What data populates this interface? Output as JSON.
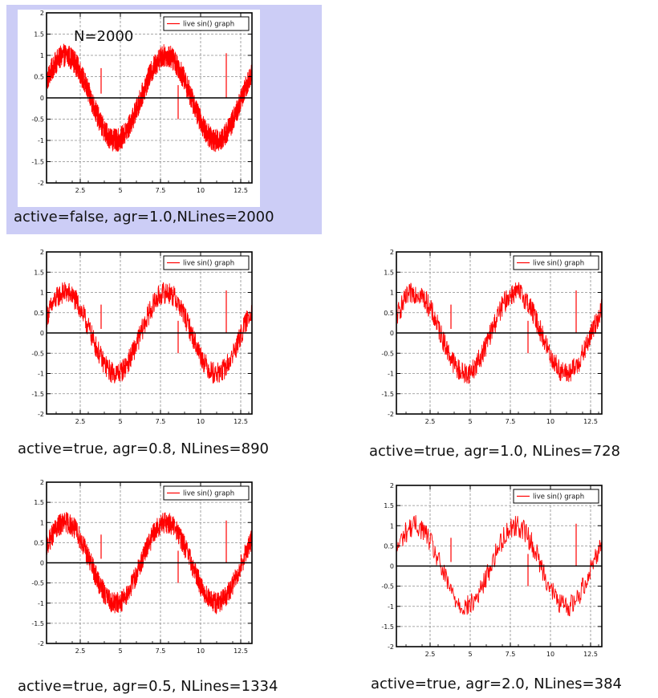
{
  "colors": {
    "series": "#ff0000",
    "highlight": "#cccdf6",
    "grid": "#8c8c8c",
    "axis": "#000000"
  },
  "chart_data": [
    {
      "type": "line",
      "caption": "active=false, agr=1.0,NLines=2000",
      "annotation": "N=2000",
      "highlighted": true,
      "nlines": 2000,
      "noise": 0.55,
      "series": [
        {
          "name": "live sin() graph"
        }
      ],
      "xlim": [
        0.4,
        13.2
      ],
      "ylim": [
        -2,
        2
      ],
      "xticks": [
        "2.5",
        "5",
        "7.5",
        "10",
        "12.5"
      ],
      "yticks": [
        "2",
        "1.5",
        "1",
        "0.5",
        "0",
        "-0.5",
        "-1",
        "-1.5",
        "-2"
      ],
      "grid": true,
      "legend": "top-right"
    },
    {
      "type": "line",
      "caption": "active=true, agr=0.8, NLines=890",
      "annotation": "",
      "highlighted": false,
      "nlines": 890,
      "noise": 0.55,
      "series": [
        {
          "name": "live sin() graph"
        }
      ],
      "xlim": [
        0.4,
        13.2
      ],
      "ylim": [
        -2,
        2
      ],
      "xticks": [
        "2.5",
        "5",
        "7.5",
        "10",
        "12.5"
      ],
      "yticks": [
        "2",
        "1.5",
        "1",
        "0.5",
        "0",
        "-0.5",
        "-1",
        "-1.5",
        "-2"
      ],
      "grid": true,
      "legend": "top-right"
    },
    {
      "type": "line",
      "caption": "active=true, agr=1.0, NLines=728",
      "annotation": "",
      "highlighted": false,
      "nlines": 728,
      "noise": 0.55,
      "series": [
        {
          "name": "live sin() graph"
        }
      ],
      "xlim": [
        0.4,
        13.2
      ],
      "ylim": [
        -2,
        2
      ],
      "xticks": [
        "2.5",
        "5",
        "7.5",
        "10",
        "12.5"
      ],
      "yticks": [
        "2",
        "1.5",
        "1",
        "0.5",
        "0",
        "-0.5",
        "-1",
        "-1.5",
        "-2"
      ],
      "grid": true,
      "legend": "top-right"
    },
    {
      "type": "line",
      "caption": "active=true, agr=0.5, NLines=1334",
      "annotation": "",
      "highlighted": false,
      "nlines": 1334,
      "noise": 0.55,
      "series": [
        {
          "name": "live sin() graph"
        }
      ],
      "xlim": [
        0.4,
        13.2
      ],
      "ylim": [
        -2,
        2
      ],
      "xticks": [
        "2.5",
        "5",
        "7.5",
        "10",
        "12.5"
      ],
      "yticks": [
        "2",
        "1.5",
        "1",
        "0.5",
        "0",
        "-0.5",
        "-1",
        "-1.5",
        "-2"
      ],
      "grid": true,
      "legend": "top-right"
    },
    {
      "type": "line",
      "caption": "active=true, agr=2.0, NLines=384",
      "annotation": "",
      "highlighted": false,
      "nlines": 384,
      "noise": 0.55,
      "series": [
        {
          "name": "live sin() graph"
        }
      ],
      "xlim": [
        0.4,
        13.2
      ],
      "ylim": [
        -2,
        2
      ],
      "xticks": [
        "2.5",
        "5",
        "7.5",
        "10",
        "12.5"
      ],
      "yticks": [
        "2",
        "1.5",
        "1",
        "0.5",
        "0",
        "-0.5",
        "-1",
        "-1.5",
        "-2"
      ],
      "grid": true,
      "legend": "top-right"
    }
  ]
}
